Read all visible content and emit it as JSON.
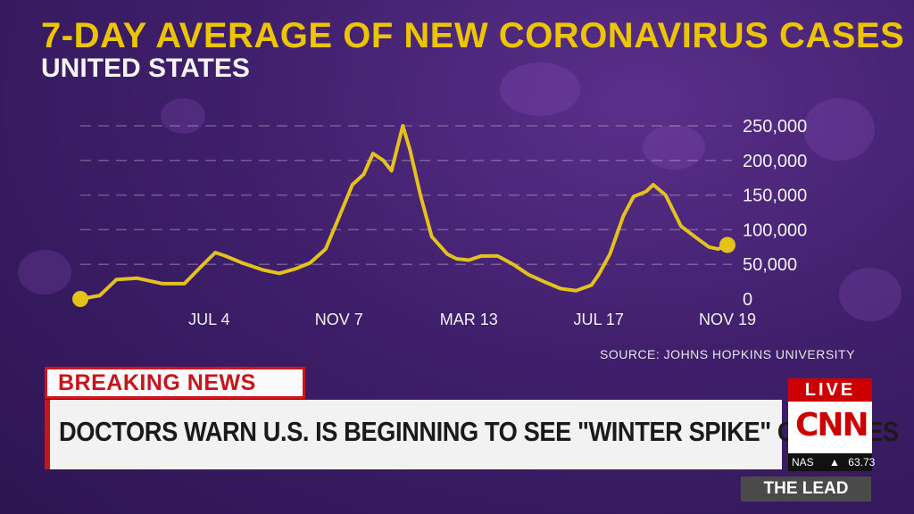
{
  "header": {
    "title": "7-DAY AVERAGE OF NEW CORONAVIRUS CASES",
    "subtitle": "UNITED STATES"
  },
  "source": "SOURCE: JOHNS HOPKINS UNIVERSITY",
  "chart_data": {
    "type": "line",
    "title": "7-DAY AVERAGE OF NEW CORONAVIRUS CASES",
    "subtitle": "UNITED STATES",
    "xlabel": "",
    "ylabel": "",
    "ylim": [
      0,
      250000
    ],
    "y_ticks": [
      {
        "value": 0,
        "label": "0"
      },
      {
        "value": 50000,
        "label": "50,000"
      },
      {
        "value": 100000,
        "label": "100,000"
      },
      {
        "value": 150000,
        "label": "150,000"
      },
      {
        "value": 200000,
        "label": "200,000"
      },
      {
        "value": 250000,
        "label": "250,000"
      }
    ],
    "x_ticks": [
      {
        "value": "2020-07-04",
        "label": "JUL 4"
      },
      {
        "value": "2020-11-07",
        "label": "NOV 7"
      },
      {
        "value": "2021-03-13",
        "label": "MAR 13"
      },
      {
        "value": "2021-07-17",
        "label": "JUL 17"
      },
      {
        "value": "2021-11-19",
        "label": "NOV 19"
      }
    ],
    "grid": true,
    "line_color": "#e4c21c",
    "x": [
      "2020-03-01",
      "2020-03-20",
      "2020-04-05",
      "2020-04-25",
      "2020-05-20",
      "2020-06-10",
      "2020-06-25",
      "2020-07-10",
      "2020-07-20",
      "2020-08-05",
      "2020-08-25",
      "2020-09-10",
      "2020-09-25",
      "2020-10-10",
      "2020-10-25",
      "2020-11-07",
      "2020-11-20",
      "2020-12-01",
      "2020-12-10",
      "2020-12-20",
      "2020-12-28",
      "2021-01-08",
      "2021-01-15",
      "2021-01-25",
      "2021-02-05",
      "2021-02-20",
      "2021-03-01",
      "2021-03-13",
      "2021-03-25",
      "2021-04-10",
      "2021-04-25",
      "2021-05-10",
      "2021-05-25",
      "2021-06-10",
      "2021-06-25",
      "2021-07-10",
      "2021-07-17",
      "2021-07-28",
      "2021-08-10",
      "2021-08-20",
      "2021-09-01",
      "2021-09-08",
      "2021-09-20",
      "2021-10-05",
      "2021-10-20",
      "2021-11-01",
      "2021-11-10",
      "2021-11-19"
    ],
    "series": [
      {
        "values": [
          0,
          5000,
          28000,
          30000,
          22000,
          22000,
          45000,
          67000,
          62000,
          52000,
          42000,
          37000,
          43000,
          52000,
          72000,
          118000,
          165000,
          180000,
          210000,
          200000,
          185000,
          250000,
          215000,
          150000,
          90000,
          65000,
          58000,
          56000,
          62000,
          62000,
          50000,
          35000,
          25000,
          15000,
          12000,
          20000,
          35000,
          65000,
          120000,
          148000,
          155000,
          165000,
          150000,
          105000,
          88000,
          75000,
          72000,
          78000
        ]
      }
    ],
    "endpoint_markers": true
  },
  "banner": {
    "breaking_label": "BREAKING NEWS",
    "headline": "DOCTORS WARN U.S. IS BEGINNING TO SEE \"WINTER SPIKE\" OF CASES"
  },
  "network": {
    "live_label": "LIVE",
    "logo_text": "CNN",
    "ticker_symbol": "NAS",
    "ticker_arrow": "▲",
    "ticker_value": "63.73",
    "show_label": "THE LEAD"
  }
}
